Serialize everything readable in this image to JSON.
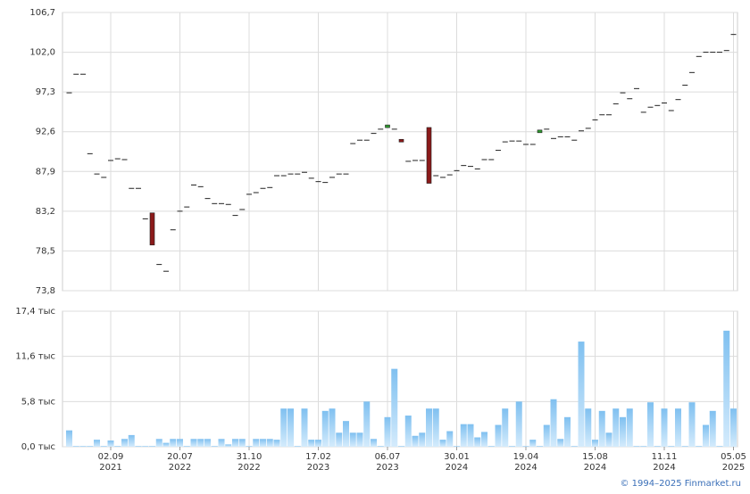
{
  "chart_data": {
    "type": "candlestick",
    "ylim": [
      73.8,
      106.7
    ],
    "yticks": [
      {
        "value": 73.8,
        "label": "73,8"
      },
      {
        "value": 78.5,
        "label": "78,5"
      },
      {
        "value": 83.2,
        "label": "83,2"
      },
      {
        "value": 87.9,
        "label": "87,9"
      },
      {
        "value": 92.6,
        "label": "92,6"
      },
      {
        "value": 97.3,
        "label": "97,3"
      },
      {
        "value": 102.0,
        "label": "102,0"
      },
      {
        "value": 106.7,
        "label": "106,7"
      }
    ],
    "volume_ylim": [
      0,
      17.4
    ],
    "volume_yticks": [
      {
        "value": 0,
        "label": "0,0 тыс"
      },
      {
        "value": 5.8,
        "label": "5,8 тыс"
      },
      {
        "value": 11.6,
        "label": "11,6 тыс"
      },
      {
        "value": 17.4,
        "label": "17,4 тыс"
      }
    ],
    "categories": [
      null,
      null,
      null,
      null,
      null,
      null,
      "02.09",
      null,
      null,
      null,
      null,
      null,
      null,
      null,
      null,
      null,
      "20.07",
      null,
      null,
      null,
      null,
      null,
      null,
      null,
      null,
      null,
      "31.10",
      null,
      null,
      null,
      null,
      null,
      null,
      null,
      null,
      null,
      "17.02",
      null,
      null,
      null,
      null,
      null,
      null,
      null,
      null,
      null,
      "06.07",
      null,
      null,
      null,
      null,
      null,
      null,
      null,
      null,
      null,
      "30.01",
      null,
      null,
      null,
      null,
      null,
      null,
      null,
      null,
      null,
      "19.04",
      null,
      null,
      null,
      null,
      null,
      null,
      null,
      null,
      null,
      "15.08",
      null,
      null,
      null,
      null,
      null,
      null,
      null,
      null,
      null,
      "11.11",
      null,
      null,
      null,
      null,
      null,
      null,
      null,
      null,
      null,
      "05.05"
    ],
    "category_years": [
      null,
      null,
      null,
      null,
      null,
      null,
      "2021",
      null,
      null,
      null,
      null,
      null,
      null,
      null,
      null,
      null,
      "2022",
      null,
      null,
      null,
      null,
      null,
      null,
      null,
      null,
      null,
      "2022",
      null,
      null,
      null,
      null,
      null,
      null,
      null,
      null,
      null,
      "2023",
      null,
      null,
      null,
      null,
      null,
      null,
      null,
      null,
      null,
      "2023",
      null,
      null,
      null,
      null,
      null,
      null,
      null,
      null,
      null,
      "2024",
      null,
      null,
      null,
      null,
      null,
      null,
      null,
      null,
      null,
      "2024",
      null,
      null,
      null,
      null,
      null,
      null,
      null,
      null,
      null,
      "2024",
      null,
      null,
      null,
      null,
      null,
      null,
      null,
      null,
      null,
      "2024",
      null,
      null,
      null,
      null,
      null,
      null,
      null,
      null,
      null,
      "2025"
    ],
    "open": [
      97.2,
      99.4,
      99.4,
      90.0,
      87.6,
      87.2,
      89.2,
      89.4,
      89.3,
      85.9,
      85.9,
      82.3,
      83.0,
      76.9,
      76.1,
      81.0,
      83.2,
      83.7,
      86.3,
      86.1,
      84.7,
      84.1,
      84.1,
      84.0,
      82.7,
      83.4,
      85.2,
      85.4,
      85.9,
      86.0,
      87.4,
      87.4,
      87.6,
      87.6,
      87.8,
      87.1,
      86.7,
      86.6,
      87.2,
      87.6,
      87.6,
      91.2,
      91.6,
      91.6,
      92.4,
      92.9,
      93.1,
      92.9,
      91.7,
      89.1,
      89.2,
      89.2,
      93.1,
      87.4,
      87.2,
      87.5,
      88.0,
      88.6,
      88.5,
      88.2,
      89.3,
      89.3,
      90.4,
      91.4,
      91.5,
      91.5,
      91.1,
      91.1,
      92.5,
      92.9,
      91.8,
      92.0,
      92.0,
      91.6,
      92.7,
      93.0,
      94.0,
      94.6,
      94.6,
      95.9,
      97.2,
      96.5,
      97.7,
      94.9,
      95.5,
      95.7,
      96.0,
      95.1,
      96.4,
      98.1,
      99.6,
      101.5,
      102.0,
      102.0,
      102.0,
      102.2,
      104.1
    ],
    "close": [
      97.2,
      99.4,
      99.4,
      90.0,
      87.6,
      87.2,
      89.2,
      89.4,
      89.3,
      85.9,
      85.9,
      82.3,
      79.2,
      76.9,
      76.1,
      81.0,
      83.2,
      83.7,
      86.3,
      86.1,
      84.7,
      84.1,
      84.1,
      84.0,
      82.7,
      83.4,
      85.2,
      85.4,
      85.9,
      86.0,
      87.4,
      87.4,
      87.6,
      87.6,
      87.8,
      87.1,
      86.7,
      86.6,
      87.2,
      87.6,
      87.6,
      91.2,
      91.6,
      91.6,
      92.4,
      92.9,
      93.4,
      92.9,
      91.4,
      89.1,
      89.2,
      89.2,
      86.5,
      87.4,
      87.2,
      87.5,
      88.0,
      88.6,
      88.5,
      88.2,
      89.3,
      89.3,
      90.4,
      91.4,
      91.5,
      91.5,
      91.1,
      91.1,
      92.8,
      92.9,
      91.8,
      92.0,
      92.0,
      91.6,
      92.7,
      93.0,
      94.0,
      94.6,
      94.6,
      95.9,
      97.2,
      96.5,
      97.7,
      94.9,
      95.5,
      95.7,
      96.0,
      95.1,
      96.4,
      98.1,
      99.6,
      101.5,
      102.0,
      102.0,
      102.0,
      102.2,
      104.1
    ],
    "volume": [
      2.1,
      0.1,
      0.1,
      0.1,
      0.9,
      0.1,
      0.8,
      0.1,
      1.0,
      1.5,
      0.1,
      0.1,
      0.1,
      1.0,
      0.5,
      1.0,
      1.0,
      0.1,
      1.0,
      1.0,
      1.0,
      0.1,
      1.0,
      0.3,
      1.0,
      1.0,
      0.1,
      1.0,
      1.0,
      1.0,
      0.9,
      4.9,
      4.9,
      0.1,
      4.9,
      0.9,
      0.9,
      4.6,
      4.9,
      1.8,
      3.3,
      1.8,
      1.8,
      5.8,
      1.0,
      0.1,
      3.8,
      10.0,
      0.1,
      4.0,
      1.4,
      1.8,
      4.9,
      4.9,
      0.9,
      2.0,
      0.1,
      2.9,
      2.9,
      1.2,
      1.9,
      0.1,
      2.8,
      4.9,
      0.1,
      5.8,
      0.1,
      0.9,
      0.1,
      2.8,
      6.1,
      1.0,
      3.8,
      0.1,
      13.5,
      4.9,
      0.9,
      4.6,
      1.8,
      4.9,
      3.8,
      4.9,
      0.1,
      0.1,
      5.7,
      0.1,
      4.9,
      0.1,
      4.9,
      0.1,
      5.7,
      0.1,
      2.8,
      4.6,
      0.1,
      14.9,
      4.9
    ],
    "up_color": "#2f9a2f",
    "down_color": "#8b1a1a",
    "flat_color": "#222222",
    "volume_color": "#8cc8f2",
    "grid": true,
    "credit": "© 1994–2025 Finmarket.ru"
  }
}
